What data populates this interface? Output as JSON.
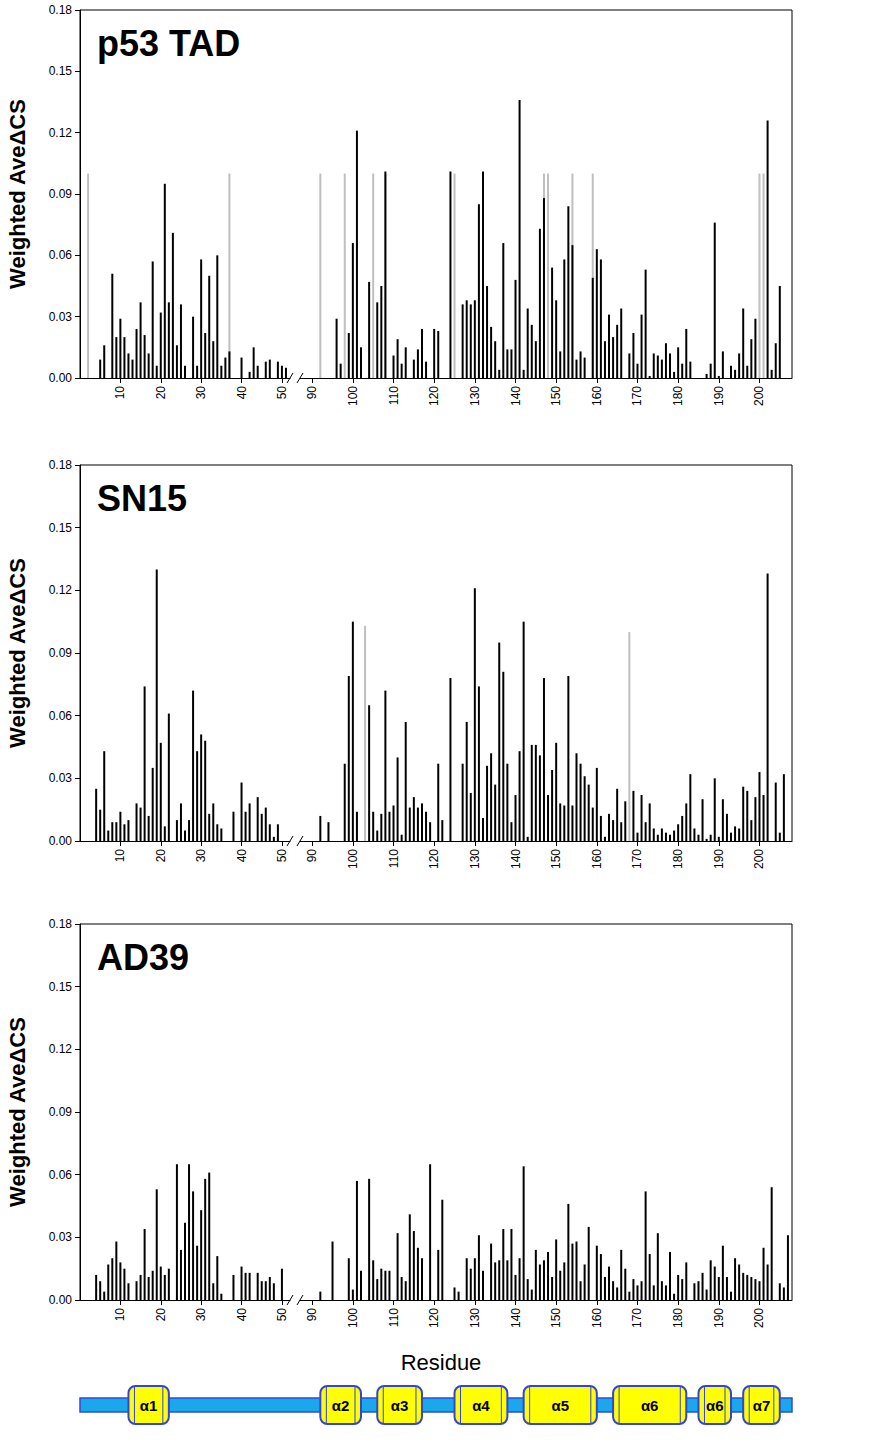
{
  "chart_data": [
    {
      "type": "bar",
      "title": "p53 TAD",
      "ylabel": "Weighted AveΔCS",
      "xlim": [
        [
          0,
          52
        ],
        [
          87,
          208
        ]
      ],
      "xticks": [
        10,
        20,
        30,
        40,
        50,
        90,
        100,
        110,
        120,
        130,
        140,
        150,
        160,
        170,
        180,
        190,
        200
      ],
      "ylim": [
        0,
        0.18
      ],
      "yticks": [
        {
          "value": 0,
          "label": "0.00"
        },
        {
          "value": 0.03,
          "label": "0.03"
        },
        {
          "value": 0.06,
          "label": "0.06"
        },
        {
          "value": 0.09,
          "label": "0.09"
        },
        {
          "value": 0.12,
          "label": "0.12"
        },
        {
          "value": 0.15,
          "label": "0.15"
        },
        {
          "value": 0.18,
          "label": "0.18"
        }
      ],
      "grid": false,
      "series": [
        {
          "color": "#bfbfbf",
          "x": [
            2,
            37,
            92,
            98,
            105,
            108,
            125,
            147,
            148,
            154,
            159,
            200,
            201
          ],
          "values": [
            0.1,
            0.1,
            0.1,
            0.1,
            0.1,
            0.1,
            0.1,
            0.1,
            0.1,
            0.1,
            0.1,
            0.1,
            0.1
          ]
        },
        {
          "color": "#000000",
          "x": [
            5,
            6,
            8,
            9,
            10,
            11,
            12,
            13,
            14,
            15,
            16,
            17,
            18,
            19,
            20,
            21,
            22,
            23,
            24,
            25,
            26,
            28,
            29,
            30,
            31,
            32,
            33,
            34,
            35,
            36,
            37,
            40,
            42,
            43,
            44,
            46,
            47,
            49,
            50,
            51,
            96,
            97,
            99,
            100,
            101,
            102,
            104,
            106,
            107,
            108,
            110,
            111,
            112,
            113,
            115,
            116,
            117,
            118,
            120,
            121,
            124,
            127,
            128,
            129,
            130,
            131,
            132,
            133,
            134,
            135,
            136,
            137,
            138,
            139,
            140,
            141,
            142,
            143,
            144,
            145,
            146,
            147,
            149,
            150,
            151,
            152,
            153,
            154,
            155,
            156,
            157,
            159,
            160,
            161,
            162,
            163,
            164,
            165,
            166,
            168,
            169,
            170,
            171,
            172,
            173,
            174,
            175,
            176,
            177,
            178,
            179,
            180,
            181,
            182,
            183,
            187,
            188,
            189,
            190,
            191,
            193,
            194,
            195,
            196,
            197,
            198,
            199,
            202,
            203,
            204,
            205
          ],
          "values": [
            0.009,
            0.016,
            0.051,
            0.02,
            0.029,
            0.02,
            0.012,
            0.009,
            0.024,
            0.037,
            0.021,
            0.012,
            0.057,
            0.006,
            0.032,
            0.095,
            0.037,
            0.071,
            0.016,
            0.036,
            0.006,
            0.03,
            0.006,
            0.058,
            0.022,
            0.05,
            0.018,
            0.06,
            0.006,
            0.01,
            0.013,
            0.01,
            0.003,
            0.015,
            0.006,
            0.008,
            0.009,
            0.008,
            0.006,
            0.005,
            0.029,
            0.007,
            0.022,
            0.066,
            0.121,
            0.015,
            0.047,
            0.037,
            0.045,
            0.101,
            0.011,
            0.019,
            0.007,
            0.015,
            0.009,
            0.014,
            0.024,
            0.008,
            0.024,
            0.023,
            0.101,
            0.036,
            0.038,
            0.036,
            0.038,
            0.085,
            0.101,
            0.045,
            0.025,
            0.018,
            0.004,
            0.066,
            0.014,
            0.014,
            0.048,
            0.136,
            0.004,
            0.034,
            0.026,
            0.018,
            0.073,
            0.088,
            0.054,
            0.038,
            0.013,
            0.058,
            0.084,
            0.065,
            0.009,
            0.013,
            0.01,
            0.049,
            0.063,
            0.058,
            0.018,
            0.031,
            0.02,
            0.026,
            0.034,
            0.012,
            0.022,
            0.007,
            0.031,
            0.053,
            0.001,
            0.012,
            0.011,
            0.009,
            0.017,
            0.012,
            0.003,
            0.015,
            0.007,
            0.024,
            0.008,
            0.002,
            0.007,
            0.076,
            0.001,
            0.013,
            0.006,
            0.004,
            0.012,
            0.034,
            0.006,
            0.019,
            0.029,
            0.126,
            0.004,
            0.017,
            0.045
          ]
        }
      ]
    },
    {
      "type": "bar",
      "title": "SN15",
      "ylabel": "Weighted AveΔCS",
      "xlim": [
        [
          0,
          52
        ],
        [
          87,
          208
        ]
      ],
      "xticks": [
        10,
        20,
        30,
        40,
        50,
        90,
        100,
        110,
        120,
        130,
        140,
        150,
        160,
        170,
        180,
        190,
        200
      ],
      "ylim": [
        0,
        0.18
      ],
      "yticks": [
        {
          "value": 0,
          "label": "0.00"
        },
        {
          "value": 0.03,
          "label": "0.03"
        },
        {
          "value": 0.06,
          "label": "0.06"
        },
        {
          "value": 0.09,
          "label": "0.09"
        },
        {
          "value": 0.12,
          "label": "0.12"
        },
        {
          "value": 0.15,
          "label": "0.15"
        },
        {
          "value": 0.18,
          "label": "0.18"
        }
      ],
      "grid": false,
      "series": [
        {
          "color": "#bfbfbf",
          "x": [
            103,
            168
          ],
          "values": [
            0.103,
            0.1
          ]
        },
        {
          "color": "#000000",
          "x": [
            4,
            5,
            6,
            7,
            8,
            9,
            10,
            11,
            12,
            14,
            15,
            16,
            17,
            18,
            19,
            20,
            21,
            22,
            24,
            25,
            26,
            27,
            28,
            29,
            30,
            31,
            32,
            33,
            34,
            35,
            38,
            40,
            41,
            42,
            44,
            45,
            46,
            47,
            48,
            49,
            92,
            94,
            98,
            99,
            100,
            101,
            104,
            105,
            106,
            107,
            108,
            109,
            110,
            111,
            112,
            113,
            114,
            115,
            116,
            117,
            118,
            119,
            121,
            122,
            124,
            127,
            128,
            129,
            130,
            131,
            132,
            133,
            134,
            135,
            136,
            137,
            138,
            139,
            140,
            141,
            142,
            143,
            144,
            145,
            146,
            147,
            148,
            149,
            150,
            151,
            152,
            153,
            154,
            155,
            156,
            157,
            158,
            159,
            160,
            161,
            162,
            163,
            164,
            165,
            166,
            167,
            169,
            170,
            171,
            172,
            173,
            174,
            175,
            176,
            177,
            178,
            179,
            180,
            181,
            182,
            183,
            184,
            185,
            186,
            187,
            188,
            189,
            190,
            191,
            192,
            193,
            194,
            195,
            196,
            197,
            198,
            199,
            200,
            201,
            202,
            204,
            205,
            206
          ],
          "values": [
            0.025,
            0.015,
            0.043,
            0.005,
            0.009,
            0.009,
            0.014,
            0.008,
            0.01,
            0.018,
            0.016,
            0.074,
            0.012,
            0.035,
            0.13,
            0.047,
            0.007,
            0.061,
            0.01,
            0.018,
            0.005,
            0.01,
            0.072,
            0.043,
            0.051,
            0.048,
            0.013,
            0.018,
            0.008,
            0.006,
            0.014,
            0.028,
            0.014,
            0.018,
            0.021,
            0.013,
            0.016,
            0.008,
            0.002,
            0.008,
            0.012,
            0.009,
            0.037,
            0.079,
            0.105,
            0.014,
            0.065,
            0.014,
            0.005,
            0.013,
            0.072,
            0.014,
            0.017,
            0.04,
            0.003,
            0.057,
            0.016,
            0.021,
            0.016,
            0.018,
            0.014,
            0.009,
            0.037,
            0.01,
            0.078,
            0.037,
            0.057,
            0.023,
            0.121,
            0.074,
            0.011,
            0.036,
            0.042,
            0.027,
            0.095,
            0.081,
            0.037,
            0.009,
            0.022,
            0.043,
            0.105,
            0.002,
            0.046,
            0.046,
            0.041,
            0.078,
            0.022,
            0.034,
            0.047,
            0.018,
            0.017,
            0.079,
            0.017,
            0.042,
            0.037,
            0.031,
            0.027,
            0.016,
            0.035,
            0.012,
            0.002,
            0.013,
            0.01,
            0.025,
            0.009,
            0.019,
            0.024,
            0.004,
            0.022,
            0.009,
            0.018,
            0.006,
            0.003,
            0.006,
            0.004,
            0.003,
            0.005,
            0.008,
            0.012,
            0.018,
            0.032,
            0.006,
            0.003,
            0.02,
            0.001,
            0.003,
            0.03,
            0.002,
            0.02,
            0.013,
            0.004,
            0.007,
            0.006,
            0.026,
            0.024,
            0.01,
            0.021,
            0.033,
            0.022,
            0.128,
            0.028,
            0.004,
            0.032
          ]
        }
      ]
    },
    {
      "type": "bar",
      "title": "AD39",
      "ylabel": "Weighted AveΔCS",
      "xlabel": "Residue",
      "xlim": [
        [
          0,
          52
        ],
        [
          87,
          208
        ]
      ],
      "xticks": [
        10,
        20,
        30,
        40,
        50,
        90,
        100,
        110,
        120,
        130,
        140,
        150,
        160,
        170,
        180,
        190,
        200
      ],
      "ylim": [
        0,
        0.18
      ],
      "yticks": [
        {
          "value": 0,
          "label": "0.00"
        },
        {
          "value": 0.03,
          "label": "0.03"
        },
        {
          "value": 0.06,
          "label": "0.06"
        },
        {
          "value": 0.09,
          "label": "0.09"
        },
        {
          "value": 0.12,
          "label": "0.12"
        },
        {
          "value": 0.15,
          "label": "0.15"
        },
        {
          "value": 0.18,
          "label": "0.18"
        }
      ],
      "grid": false,
      "series": [
        {
          "color": "#000000",
          "x": [
            4,
            5,
            6,
            7,
            8,
            9,
            10,
            11,
            12,
            14,
            15,
            16,
            17,
            18,
            19,
            20,
            21,
            22,
            24,
            25,
            26,
            27,
            28,
            29,
            30,
            31,
            32,
            33,
            34,
            35,
            38,
            40,
            41,
            42,
            44,
            45,
            46,
            47,
            48,
            50,
            92,
            95,
            99,
            100,
            101,
            102,
            104,
            105,
            106,
            107,
            108,
            109,
            111,
            112,
            113,
            114,
            115,
            116,
            117,
            119,
            121,
            122,
            125,
            126,
            128,
            129,
            130,
            131,
            132,
            134,
            135,
            136,
            137,
            138,
            139,
            140,
            141,
            142,
            143,
            144,
            145,
            146,
            147,
            148,
            149,
            150,
            151,
            152,
            153,
            154,
            155,
            156,
            157,
            158,
            160,
            161,
            162,
            163,
            164,
            165,
            166,
            167,
            168,
            169,
            170,
            171,
            172,
            173,
            174,
            175,
            176,
            177,
            178,
            179,
            180,
            181,
            182,
            184,
            185,
            186,
            187,
            188,
            189,
            190,
            191,
            192,
            193,
            194,
            195,
            196,
            197,
            198,
            199,
            200,
            201,
            202,
            203,
            205,
            206,
            207
          ],
          "values": [
            0.012,
            0.009,
            0.004,
            0.017,
            0.02,
            0.028,
            0.018,
            0.015,
            0.008,
            0.009,
            0.012,
            0.034,
            0.011,
            0.014,
            0.053,
            0.016,
            0.012,
            0.015,
            0.065,
            0.024,
            0.037,
            0.065,
            0.052,
            0.026,
            0.043,
            0.058,
            0.061,
            0.008,
            0.021,
            0.003,
            0.012,
            0.016,
            0.013,
            0.013,
            0.013,
            0.009,
            0.009,
            0.011,
            0.008,
            0.015,
            0.004,
            0.028,
            0.02,
            0.005,
            0.057,
            0.014,
            0.058,
            0.019,
            0.01,
            0.015,
            0.014,
            0.014,
            0.032,
            0.011,
            0.009,
            0.041,
            0.033,
            0.025,
            0.02,
            0.065,
            0.024,
            0.048,
            0.006,
            0.004,
            0.02,
            0.015,
            0.02,
            0.031,
            0.014,
            0.027,
            0.018,
            0.019,
            0.034,
            0.019,
            0.034,
            0.012,
            0.02,
            0.064,
            0.01,
            0.005,
            0.024,
            0.017,
            0.019,
            0.023,
            0.011,
            0.029,
            0.014,
            0.018,
            0.046,
            0.027,
            0.028,
            0.009,
            0.017,
            0.035,
            0.026,
            0.022,
            0.011,
            0.016,
            0.009,
            0.006,
            0.024,
            0.015,
            0.004,
            0.01,
            0.007,
            0.009,
            0.052,
            0.022,
            0.007,
            0.032,
            0.009,
            0.007,
            0.023,
            0.003,
            0.012,
            0.01,
            0.018,
            0.008,
            0.009,
            0.013,
            0.005,
            0.019,
            0.016,
            0.011,
            0.026,
            0.011,
            0.004,
            0.02,
            0.017,
            0.013,
            0.012,
            0.011,
            0.01,
            0.009,
            0.025,
            0.017,
            0.054,
            0.008,
            0.006,
            0.031
          ]
        }
      ],
      "secondary_structure": [
        {
          "label": "α1",
          "start": 12,
          "end": 22
        },
        {
          "label": "α2",
          "start": 92,
          "end": 102
        },
        {
          "label": "α3",
          "start": 106,
          "end": 117
        },
        {
          "label": "α4",
          "start": 125,
          "end": 138
        },
        {
          "label": "α5",
          "start": 142,
          "end": 160
        },
        {
          "label": "α6",
          "start": 164,
          "end": 182
        },
        {
          "label": "α6",
          "start": 185,
          "end": 193
        },
        {
          "label": "α7",
          "start": 196,
          "end": 205
        }
      ]
    }
  ]
}
